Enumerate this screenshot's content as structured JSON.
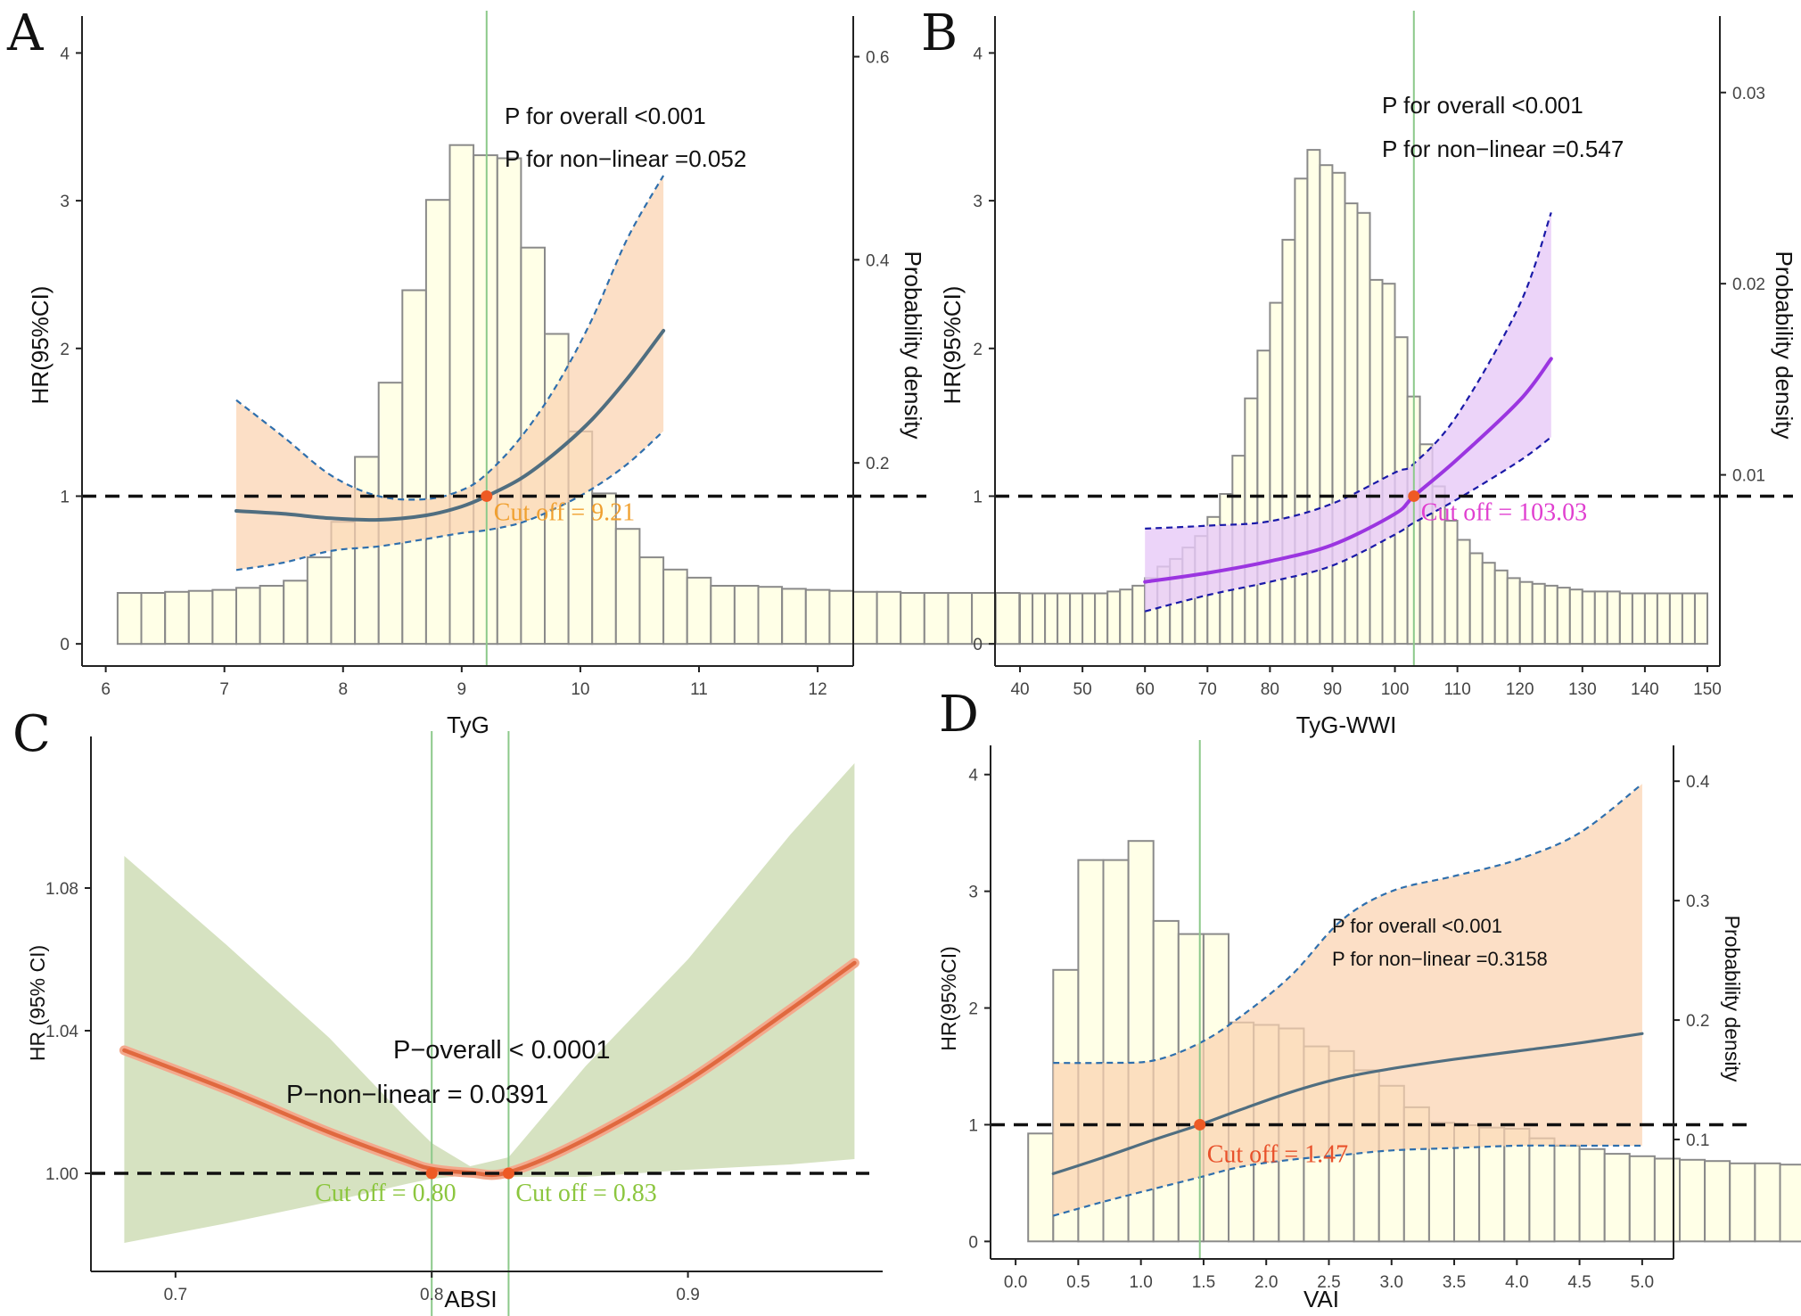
{
  "chart_data": [
    {
      "type": "line",
      "panel": "A",
      "xlabel": "TyG",
      "ylabel": "HR(95%CI)",
      "y2label": "Probability density",
      "xlim": [
        5.8,
        12.3
      ],
      "ylim": [
        -0.15,
        4.25
      ],
      "y2lim": [
        0,
        0.64
      ],
      "xticks": [
        6,
        7,
        8,
        9,
        10,
        11,
        12
      ],
      "yticks": [
        0,
        1,
        2,
        3,
        4
      ],
      "y2ticks": [
        0.2,
        0.4,
        0.6
      ],
      "reference_hr": 1,
      "cutoff_x": 9.21,
      "cutoff_label": "Cut off = 9.21",
      "annotations": [
        "P for overall <0.001",
        "P for non−linear =0.052"
      ],
      "line_color": "#506e80",
      "band_color": "#fbd3b0",
      "dash_color": "#2f6fad",
      "label_color": "#f0a030",
      "histogram": {
        "bin_width": 0.2,
        "bin_start": 6.1,
        "density": [
          0.072,
          0.072,
          0.073,
          0.074,
          0.075,
          0.077,
          0.079,
          0.084,
          0.107,
          0.142,
          0.206,
          0.279,
          0.37,
          0.459,
          0.513,
          0.503,
          0.5,
          0.412,
          0.327,
          0.231,
          0.17,
          0.135,
          0.107,
          0.095,
          0.087,
          0.079,
          0.079,
          0.078,
          0.076,
          0.075,
          0.074,
          0.073,
          0.073,
          0.072,
          0.072,
          0.072,
          0.072,
          0.072
        ]
      },
      "curve": {
        "x": [
          7.1,
          7.5,
          7.9,
          8.3,
          8.7,
          9.0,
          9.21,
          9.5,
          9.8,
          10.1,
          10.4,
          10.7
        ],
        "hr": [
          0.9,
          0.88,
          0.85,
          0.84,
          0.87,
          0.93,
          1.0,
          1.12,
          1.3,
          1.52,
          1.8,
          2.12
        ],
        "lower": [
          0.5,
          0.55,
          0.63,
          0.66,
          0.71,
          0.75,
          0.77,
          0.82,
          0.92,
          1.05,
          1.22,
          1.44
        ],
        "upper": [
          1.65,
          1.4,
          1.14,
          1.0,
          0.98,
          1.04,
          1.15,
          1.4,
          1.75,
          2.2,
          2.75,
          3.17
        ]
      }
    },
    {
      "type": "line",
      "panel": "B",
      "xlabel": "TyG-WWI",
      "ylabel": "HR(95%CI)",
      "y2label": "Probability density",
      "xlim": [
        36,
        152
      ],
      "ylim": [
        -0.15,
        4.25
      ],
      "y2lim": [
        0,
        0.034
      ],
      "xticks": [
        40,
        50,
        60,
        70,
        80,
        90,
        100,
        110,
        120,
        130,
        140,
        150
      ],
      "yticks": [
        0,
        1,
        2,
        3,
        4
      ],
      "y2ticks": [
        0.01,
        0.02,
        0.03
      ],
      "reference_hr": 1,
      "cutoff_x": 103.03,
      "cutoff_label": "Cut off = 103.03",
      "annotations": [
        "P for overall <0.001",
        "P for non−linear =0.547"
      ],
      "line_color": "#9b35e0",
      "band_color": "#e7c9f7",
      "dash_color": "#1a1aa8",
      "label_color": "#e040d0",
      "histogram": {
        "bin_width": 2,
        "bin_start": 40,
        "density": [
          0.0038,
          0.0038,
          0.0038,
          0.0038,
          0.0038,
          0.0038,
          0.0038,
          0.0039,
          0.004,
          0.0042,
          0.0046,
          0.0052,
          0.0056,
          0.0062,
          0.0068,
          0.0078,
          0.009,
          0.011,
          0.014,
          0.0165,
          0.019,
          0.0223,
          0.0255,
          0.027,
          0.0262,
          0.0258,
          0.0242,
          0.0237,
          0.0202,
          0.02,
          0.0172,
          0.0141,
          0.0116,
          0.0094,
          0.0076,
          0.0066,
          0.0059,
          0.0054,
          0.005,
          0.0046,
          0.0044,
          0.0043,
          0.0042,
          0.0041,
          0.004,
          0.0039,
          0.0039,
          0.0039,
          0.0038,
          0.0038,
          0.0038,
          0.0038,
          0.0038,
          0.0038,
          0.0038
        ]
      },
      "curve": {
        "x": [
          60,
          70,
          80,
          90,
          100,
          103.03,
          110,
          120,
          125
        ],
        "hr": [
          0.42,
          0.48,
          0.56,
          0.67,
          0.88,
          1.0,
          1.25,
          1.65,
          1.93
        ],
        "lower": [
          0.22,
          0.33,
          0.42,
          0.53,
          0.74,
          0.82,
          0.98,
          1.24,
          1.4
        ],
        "upper": [
          0.78,
          0.8,
          0.83,
          0.95,
          1.16,
          1.22,
          1.55,
          2.3,
          2.92
        ]
      }
    },
    {
      "type": "line",
      "panel": "C",
      "xlabel": "ABSI",
      "ylabel": "HR (95% CI)",
      "xlim": [
        0.667,
        0.976
      ],
      "ylim": [
        0.9725,
        1.1225
      ],
      "xticks": [
        0.7,
        0.8,
        0.9
      ],
      "xtick_labels": [
        "0.7",
        "0.8",
        "0.9"
      ],
      "yticks": [
        1.0,
        1.04,
        1.08
      ],
      "ytick_labels": [
        "1.00",
        "1.04",
        "1.08"
      ],
      "reference_hr": 1,
      "cutoffs": [
        0.8,
        0.83
      ],
      "cutoff_labels": [
        "Cut off = 0.80",
        "Cut off = 0.83"
      ],
      "annotations": [
        "P−overall < 0.0001",
        "P−non−linear = 0.0391"
      ],
      "line_color": "#e0693f",
      "band_color": "#d6e2c1",
      "label_color": "#8cc63f",
      "curve": {
        "x": [
          0.68,
          0.72,
          0.76,
          0.79,
          0.8,
          0.815,
          0.83,
          0.86,
          0.9,
          0.94,
          0.965
        ],
        "hr": [
          1.0345,
          1.0235,
          1.0115,
          1.0035,
          1.0013,
          1.0002,
          1.0003,
          1.0095,
          1.026,
          1.046,
          1.059
        ],
        "lower": [
          0.9805,
          0.986,
          0.992,
          0.997,
          0.9985,
          0.9995,
          0.999,
          0.999,
          1.001,
          1.0025,
          1.004
        ],
        "upper": [
          1.089,
          1.064,
          1.038,
          1.0155,
          1.0085,
          1.002,
          1.0045,
          1.03,
          1.06,
          1.095,
          1.115
        ]
      }
    },
    {
      "type": "line",
      "panel": "D",
      "xlabel": "VAI",
      "ylabel": "HR(95%CI)",
      "y2label": "Probability density",
      "xlim": [
        -0.2,
        5.25
      ],
      "ylim": [
        -0.15,
        4.25
      ],
      "y2lim": [
        0,
        0.43
      ],
      "xticks": [
        0.0,
        0.5,
        1.0,
        1.5,
        2.0,
        2.5,
        3.0,
        3.5,
        4.0,
        4.5,
        5.0
      ],
      "xtick_labels": [
        "0.0",
        "0.5",
        "1.0",
        "1.5",
        "2.0",
        "2.5",
        "3.0",
        "3.5",
        "4.0",
        "4.5",
        "5.0"
      ],
      "yticks": [
        0,
        1,
        2,
        3,
        4
      ],
      "y2ticks": [
        0.1,
        0.2,
        0.3,
        0.4
      ],
      "reference_hr": 1,
      "cutoff_x": 1.47,
      "cutoff_label": "Cut off = 1.47",
      "annotations": [
        "P for overall <0.001",
        "P for non−linear =0.3158"
      ],
      "line_color": "#506e80",
      "band_color": "#fbd3b0",
      "dash_color": "#2f6fad",
      "label_color": "#e8502a",
      "histogram": {
        "bin_width": 0.2,
        "bin_start": 0.1,
        "density": [
          0.105,
          0.242,
          0.334,
          0.334,
          0.35,
          0.283,
          0.272,
          0.272,
          0.198,
          0.196,
          0.193,
          0.178,
          0.174,
          0.158,
          0.145,
          0.127,
          0.114,
          0.112,
          0.11,
          0.109,
          0.101,
          0.095,
          0.092,
          0.088,
          0.086,
          0.084,
          0.083,
          0.082,
          0.08,
          0.08,
          0.079,
          0.078,
          0.078
        ]
      },
      "curve": {
        "x": [
          0.3,
          0.7,
          1.1,
          1.47,
          1.8,
          2.2,
          2.6,
          3.0,
          3.5,
          4.0,
          4.5,
          5.0
        ],
        "hr": [
          0.58,
          0.72,
          0.87,
          1.0,
          1.13,
          1.28,
          1.4,
          1.48,
          1.56,
          1.63,
          1.7,
          1.78
        ],
        "lower": [
          0.22,
          0.34,
          0.45,
          0.55,
          0.64,
          0.7,
          0.74,
          0.78,
          0.8,
          0.82,
          0.82,
          0.82
        ],
        "upper": [
          1.53,
          1.53,
          1.55,
          1.7,
          1.93,
          2.28,
          2.75,
          3.0,
          3.13,
          3.27,
          3.5,
          3.92
        ]
      }
    }
  ]
}
